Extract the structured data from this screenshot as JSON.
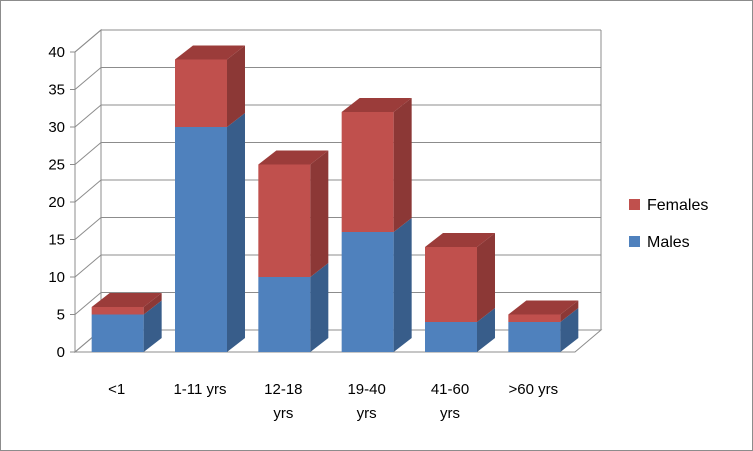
{
  "chart_data": {
    "type": "bar",
    "stacked": true,
    "three_d": true,
    "categories": [
      [
        "<1"
      ],
      [
        "1-11 yrs"
      ],
      [
        "12-18",
        "yrs"
      ],
      [
        "19-40",
        "yrs"
      ],
      [
        "41-60",
        "yrs"
      ],
      [
        ">60 yrs"
      ]
    ],
    "series": [
      {
        "name": "Males",
        "color": "#4f81bd",
        "side": "#385d8a",
        "top": "#6a95c8",
        "values": [
          5,
          30,
          10,
          16,
          4,
          4
        ]
      },
      {
        "name": "Females",
        "color": "#c0504d",
        "side": "#8c3836",
        "top": "#9b3c3a",
        "values": [
          1,
          9,
          15,
          16,
          10,
          1
        ]
      }
    ],
    "yticks": [
      "0",
      "5",
      "10",
      "15",
      "20",
      "25",
      "30",
      "35",
      "40"
    ],
    "ylim": [
      0,
      40
    ],
    "grid": true,
    "legend": "right",
    "legend_order": [
      "Females",
      "Males"
    ]
  }
}
